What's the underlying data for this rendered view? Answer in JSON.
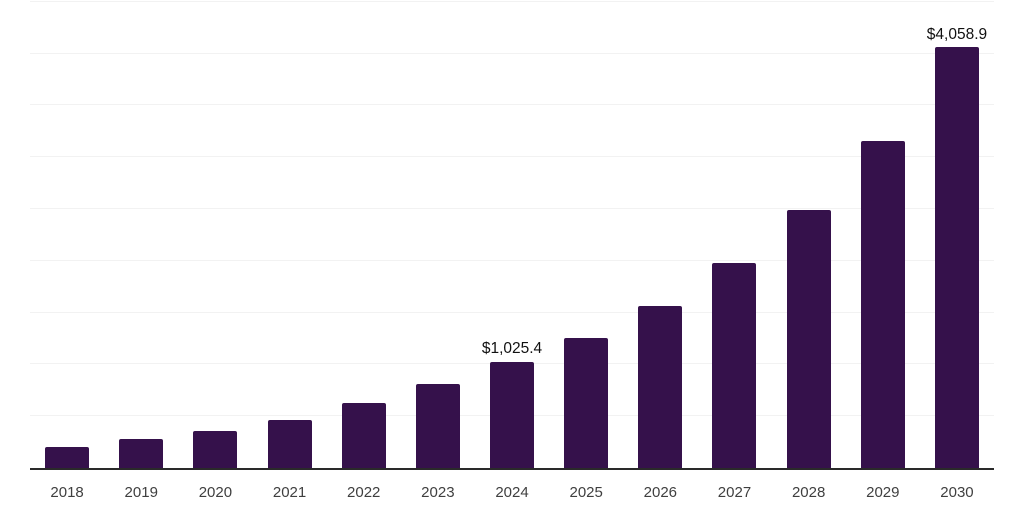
{
  "chart_data": {
    "type": "bar",
    "categories": [
      "2018",
      "2019",
      "2020",
      "2021",
      "2022",
      "2023",
      "2024",
      "2025",
      "2026",
      "2027",
      "2028",
      "2029",
      "2030"
    ],
    "values": [
      205,
      277,
      355,
      460,
      625,
      810,
      1025.4,
      1255,
      1565,
      1975,
      2490,
      3155,
      4058.9
    ],
    "value_labels": {
      "2024": "$1,025.4",
      "2030": "$4,058.9"
    },
    "xlabel": "",
    "ylabel": "",
    "ylim": [
      0,
      4500
    ],
    "gridline_step": 500,
    "grid": "horizontal",
    "legend": "none",
    "y_axis_tick_labels_visible": false,
    "colors": {
      "bar": "#35114B",
      "gridline": "#f2f2f2",
      "axis_line": "#2a2a2a",
      "tick_label": "#3f3f3f",
      "data_label": "#111111",
      "background": "#ffffff"
    }
  }
}
